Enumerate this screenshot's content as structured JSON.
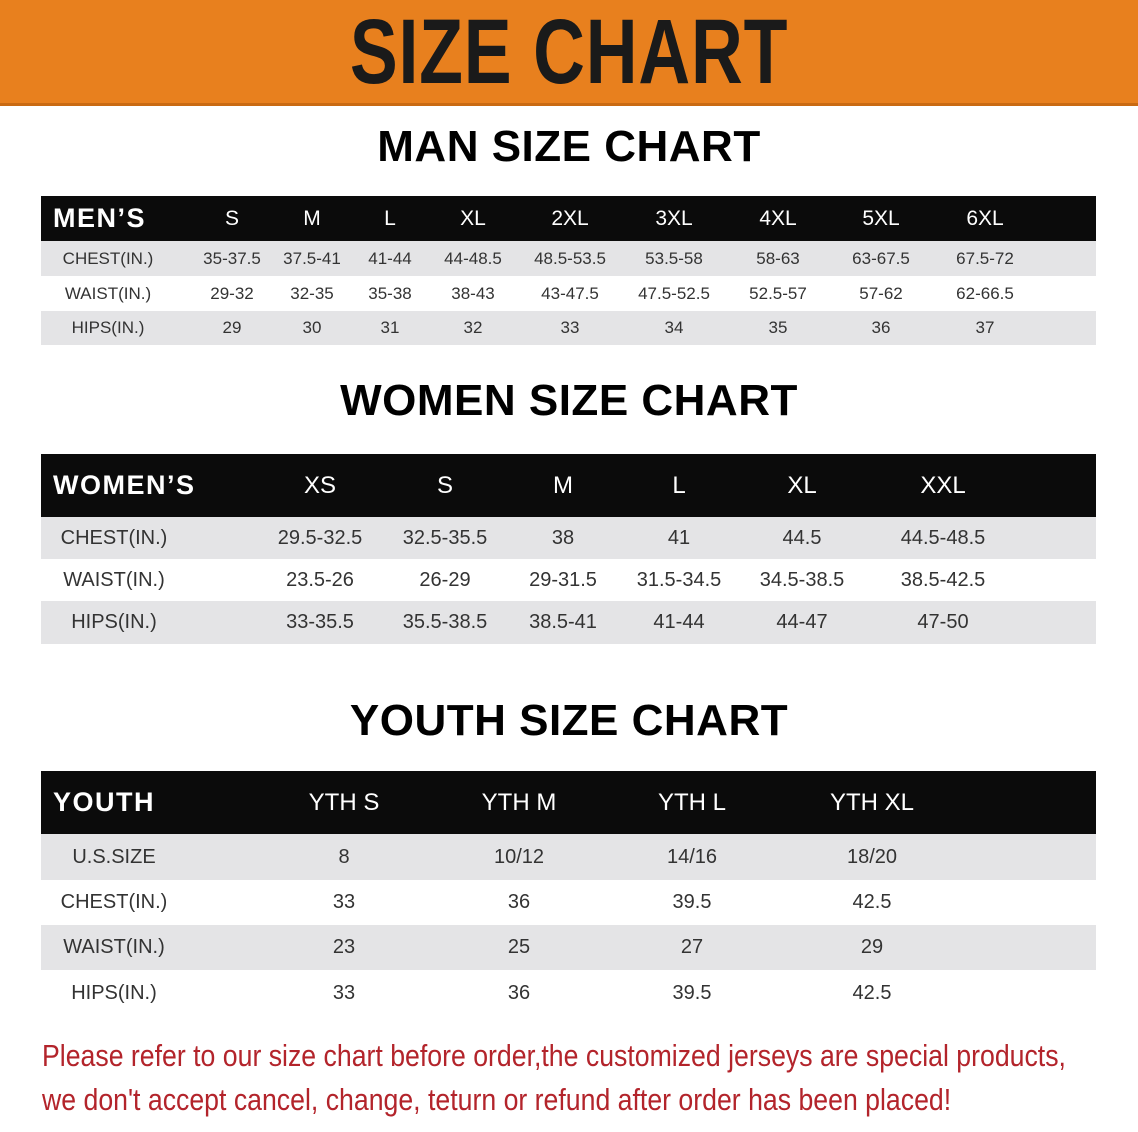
{
  "banner": {
    "title": "SIZE CHART",
    "color": "#e8801e"
  },
  "men": {
    "title": "MAN SIZE CHART",
    "header_label": "MEN’S",
    "sizes": [
      "S",
      "M",
      "L",
      "XL",
      "2XL",
      "3XL",
      "4XL",
      "5XL",
      "6XL"
    ],
    "rows": [
      {
        "label": "CHEST(IN.)",
        "values": [
          "35-37.5",
          "37.5-41",
          "41-44",
          "44-48.5",
          "48.5-53.5",
          "53.5-58",
          "58-63",
          "63-67.5",
          "67.5-72"
        ]
      },
      {
        "label": "WAIST(IN.)",
        "values": [
          "29-32",
          "32-35",
          "35-38",
          "38-43",
          "43-47.5",
          "47.5-52.5",
          "52.5-57",
          "57-62",
          "62-66.5"
        ]
      },
      {
        "label": "HIPS(IN.)",
        "values": [
          "29",
          "30",
          "31",
          "32",
          "33",
          "34",
          "35",
          "36",
          "37"
        ]
      }
    ]
  },
  "women": {
    "title": "WOMEN SIZE CHART",
    "header_label": "WOMEN’S",
    "sizes": [
      "XS",
      "S",
      "M",
      "L",
      "XL",
      "XXL"
    ],
    "rows": [
      {
        "label": "CHEST(IN.)",
        "values": [
          "29.5-32.5",
          "32.5-35.5",
          "38",
          "41",
          "44.5",
          "44.5-48.5"
        ]
      },
      {
        "label": "WAIST(IN.)",
        "values": [
          "23.5-26",
          "26-29",
          "29-31.5",
          "31.5-34.5",
          "34.5-38.5",
          "38.5-42.5"
        ]
      },
      {
        "label": "HIPS(IN.)",
        "values": [
          "33-35.5",
          "35.5-38.5",
          "38.5-41",
          "41-44",
          "44-47",
          "47-50"
        ]
      }
    ]
  },
  "youth": {
    "title": "YOUTH SIZE CHART",
    "header_label": "YOUTH",
    "sizes": [
      "YTH S",
      "YTH M",
      "YTH L",
      "YTH XL"
    ],
    "rows": [
      {
        "label": "U.S.SIZE",
        "values": [
          "8",
          "10/12",
          "14/16",
          "18/20"
        ]
      },
      {
        "label": "CHEST(IN.)",
        "values": [
          "33",
          "36",
          "39.5",
          "42.5"
        ]
      },
      {
        "label": "WAIST(IN.)",
        "values": [
          "23",
          "25",
          "27",
          "29"
        ]
      },
      {
        "label": "HIPS(IN.)",
        "values": [
          "33",
          "36",
          "39.5",
          "42.5"
        ]
      }
    ]
  },
  "notice": {
    "line1": "Please refer to our size chart before order,the customized jerseys are special products,",
    "line2": "we don't accept cancel, change, teturn or refund after order has been placed!",
    "color": "#b3242b"
  }
}
